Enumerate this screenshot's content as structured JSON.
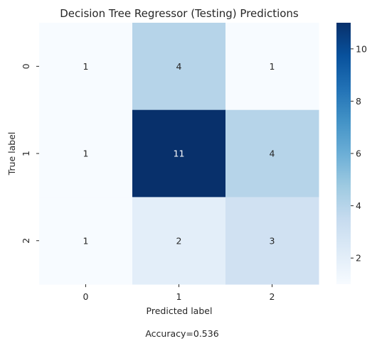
{
  "chart_data": {
    "type": "heatmap",
    "title": "Decision Tree Regressor (Testing) Predictions",
    "xlabel": "Predicted label",
    "ylabel": "True label",
    "x_categories": [
      "0",
      "1",
      "2"
    ],
    "y_categories": [
      "0",
      "1",
      "2"
    ],
    "values": [
      [
        1,
        4,
        1
      ],
      [
        1,
        11,
        4
      ],
      [
        1,
        2,
        3
      ]
    ],
    "colorbar": {
      "min": 1,
      "max": 11,
      "ticks": [
        "2",
        "4",
        "6",
        "8",
        "10"
      ],
      "colormap": "Blues"
    },
    "footer": "Accuracy=0.536"
  }
}
